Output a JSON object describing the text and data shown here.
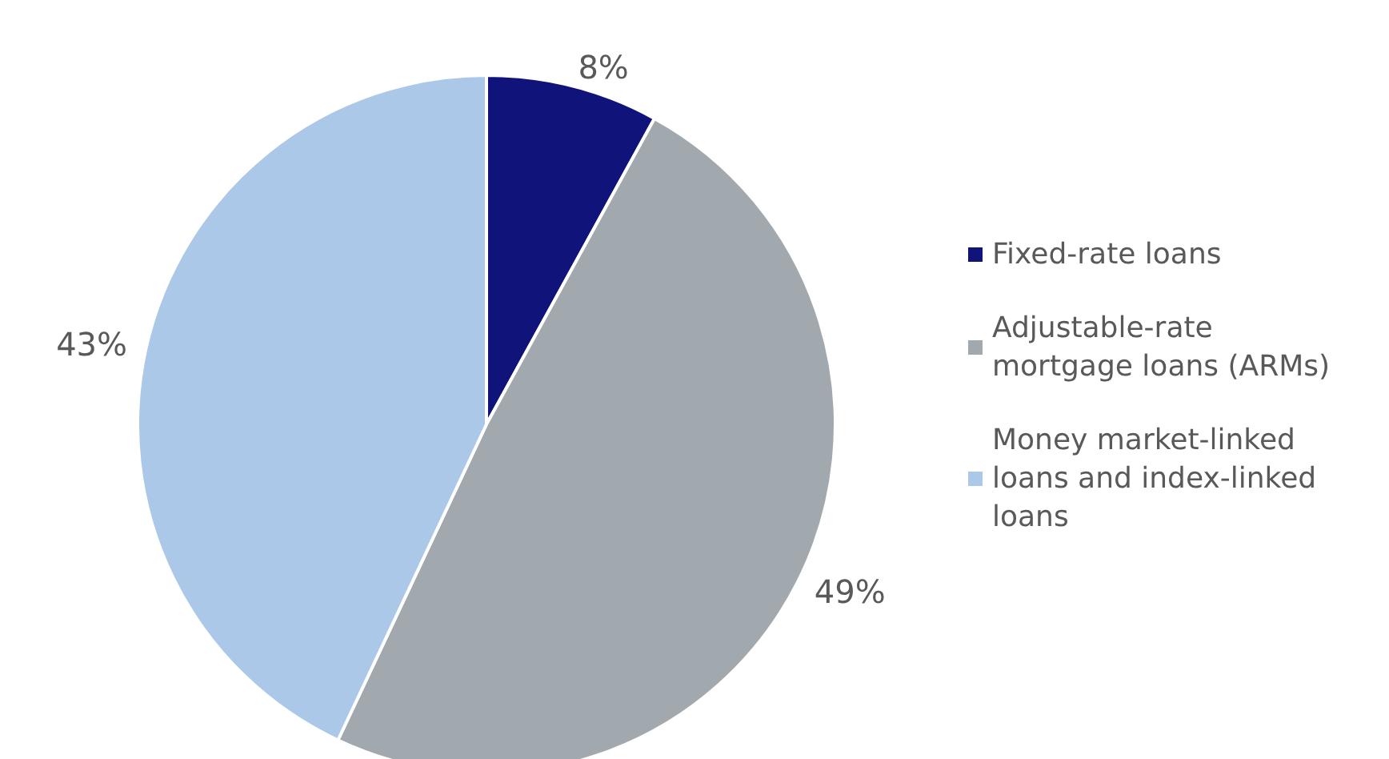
{
  "chart_data": {
    "type": "pie",
    "categories": [
      "Fixed-rate loans",
      "Adjustable-rate mortgage loans (ARMs)",
      "Money market-linked loans and index-linked loans"
    ],
    "values": [
      8,
      49,
      43
    ],
    "colors": [
      "#10137a",
      "#a2a9ae",
      "#abc8e8"
    ],
    "value_labels": [
      "8%",
      "49%",
      "43%"
    ],
    "legend": "right"
  }
}
